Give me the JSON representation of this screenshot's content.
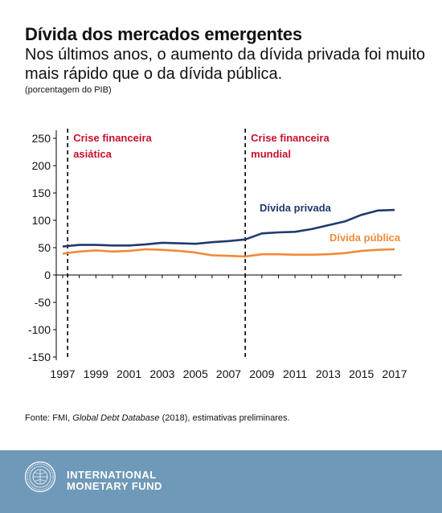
{
  "header": {
    "title": "Dívida dos mercados emergentes",
    "subtitle": "Nos últimos anos, o aumento da dívida privada foi muito mais rápido que o da dívida pública.",
    "unit_note": "(porcentagem do PIB)"
  },
  "chart_data": {
    "type": "line",
    "x": [
      1997,
      1998,
      1999,
      2000,
      2001,
      2002,
      2003,
      2004,
      2005,
      2006,
      2007,
      2008,
      2009,
      2010,
      2011,
      2012,
      2013,
      2014,
      2015,
      2016,
      2017
    ],
    "x_tick_labels": [
      "1997",
      "1999",
      "2001",
      "2003",
      "2005",
      "2007",
      "2009",
      "2011",
      "2013",
      "2015",
      "2017"
    ],
    "y_tick_labels": [
      "250",
      "200",
      "150",
      "100",
      "50",
      "0",
      "-50",
      "-100",
      "-150"
    ],
    "ylim": [
      -150,
      250
    ],
    "xlim": [
      1997,
      2017
    ],
    "grid": false,
    "series": [
      {
        "name": "Dívida privada",
        "color": "#1f3a6e",
        "values": [
          52,
          55,
          55,
          54,
          54,
          56,
          59,
          58,
          57,
          60,
          62,
          65,
          76,
          78,
          79,
          84,
          91,
          98,
          110,
          118,
          119
        ]
      },
      {
        "name": "Dívida pública",
        "color": "#f08a3b",
        "values": [
          39,
          43,
          45,
          43,
          44,
          47,
          46,
          44,
          41,
          36,
          35,
          34,
          38,
          38,
          37,
          37,
          38,
          40,
          44,
          46,
          47
        ]
      }
    ],
    "annotations": [
      {
        "year": 1997.3,
        "label": [
          "Crise financeira",
          "asiática"
        ],
        "color": "#c8102e"
      },
      {
        "year": 2008.0,
        "label": [
          "Crise financeira",
          "mundial"
        ],
        "color": "#c8102e"
      }
    ]
  },
  "source": {
    "prefix": "Fonte: FMI, ",
    "italic": "Global Debt Database",
    "suffix": " (2018), estimativas preliminares."
  },
  "footer": {
    "org_line1": "INTERNATIONAL",
    "org_line2": "MONETARY FUND",
    "seal_icon": "imf-seal-icon"
  }
}
